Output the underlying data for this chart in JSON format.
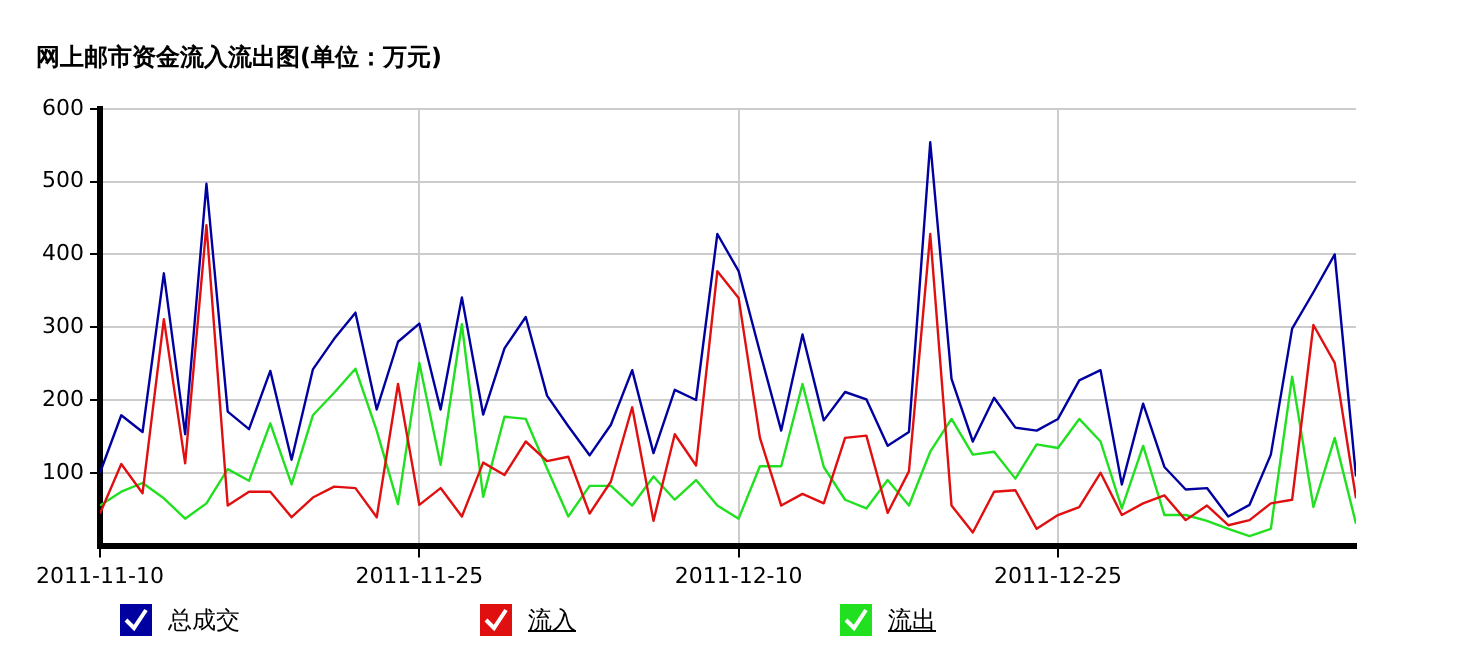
{
  "chart_data": {
    "type": "line",
    "title": "网上邮市资金流入流出图(单位：万元)",
    "x": [
      "2011-11-10",
      "2011-11-11",
      "2011-11-12",
      "2011-11-13",
      "2011-11-14",
      "2011-11-15",
      "2011-11-16",
      "2011-11-17",
      "2011-11-18",
      "2011-11-19",
      "2011-11-20",
      "2011-11-21",
      "2011-11-22",
      "2011-11-23",
      "2011-11-24",
      "2011-11-25",
      "2011-11-26",
      "2011-11-27",
      "2011-11-28",
      "2011-11-29",
      "2011-11-30",
      "2011-12-01",
      "2011-12-02",
      "2011-12-03",
      "2011-12-04",
      "2011-12-05",
      "2011-12-06",
      "2011-12-07",
      "2011-12-08",
      "2011-12-09",
      "2011-12-10",
      "2011-12-11",
      "2011-12-12",
      "2011-12-13",
      "2011-12-14",
      "2011-12-15",
      "2011-12-16",
      "2011-12-17",
      "2011-12-18",
      "2011-12-19",
      "2011-12-20",
      "2011-12-21",
      "2011-12-22",
      "2011-12-23",
      "2011-12-24",
      "2011-12-25",
      "2011-12-26",
      "2011-12-27",
      "2011-12-28",
      "2011-12-29",
      "2011-12-30",
      "2011-12-31",
      "2012-01-01",
      "2012-01-02",
      "2012-01-03",
      "2012-01-04",
      "2012-01-05",
      "2012-01-06",
      "2012-01-07",
      "2012-01-08"
    ],
    "series": [
      {
        "name": "总成交",
        "color": "#0000a0",
        "values": [
          100,
          179,
          156,
          374,
          153,
          497,
          184,
          160,
          240,
          118,
          242,
          284,
          320,
          187,
          280,
          305,
          187,
          341,
          180,
          271,
          314,
          206,
          164,
          124,
          166,
          241,
          127,
          214,
          200,
          428,
          377,
          266,
          158,
          290,
          172,
          211,
          201,
          137,
          156,
          554,
          229,
          143,
          203,
          162,
          158,
          174,
          227,
          241,
          84,
          195,
          108,
          77,
          79,
          40,
          56,
          125,
          298,
          348,
          400,
          95
        ]
      },
      {
        "name": "流入",
        "color": "#e01010",
        "values": [
          44,
          112,
          72,
          311,
          113,
          440,
          55,
          74,
          74,
          39,
          66,
          81,
          79,
          39,
          222,
          56,
          79,
          40,
          114,
          97,
          143,
          116,
          122,
          44,
          88,
          190,
          34,
          153,
          110,
          377,
          340,
          148,
          55,
          71,
          58,
          148,
          151,
          45,
          102,
          428,
          55,
          18,
          74,
          76,
          23,
          42,
          53,
          100,
          42,
          58,
          69,
          35,
          55,
          28,
          35,
          58,
          63,
          303,
          251,
          65
        ]
      },
      {
        "name": "流出",
        "color": "#20e020",
        "values": [
          55,
          74,
          86,
          65,
          37,
          58,
          105,
          89,
          168,
          84,
          179,
          210,
          243,
          158,
          57,
          251,
          111,
          304,
          67,
          177,
          174,
          106,
          40,
          82,
          82,
          55,
          95,
          63,
          90,
          55,
          37,
          109,
          109,
          222,
          108,
          63,
          51,
          90,
          55,
          129,
          174,
          125,
          129,
          92,
          139,
          134,
          174,
          143,
          51,
          137,
          42,
          42,
          34,
          23,
          13,
          23,
          232,
          53,
          148,
          30
        ]
      }
    ],
    "xlim": [
      "2011-11-10",
      "2012-01-08"
    ],
    "xticks": [
      "2011-11-10",
      "2011-11-25",
      "2011-12-10",
      "2011-12-25"
    ],
    "ylim": [
      0,
      600
    ],
    "yticks": [
      100,
      200,
      300,
      400,
      500,
      600
    ],
    "grid": true,
    "legend": "bottom",
    "marker": "none",
    "line_style": "solid"
  }
}
